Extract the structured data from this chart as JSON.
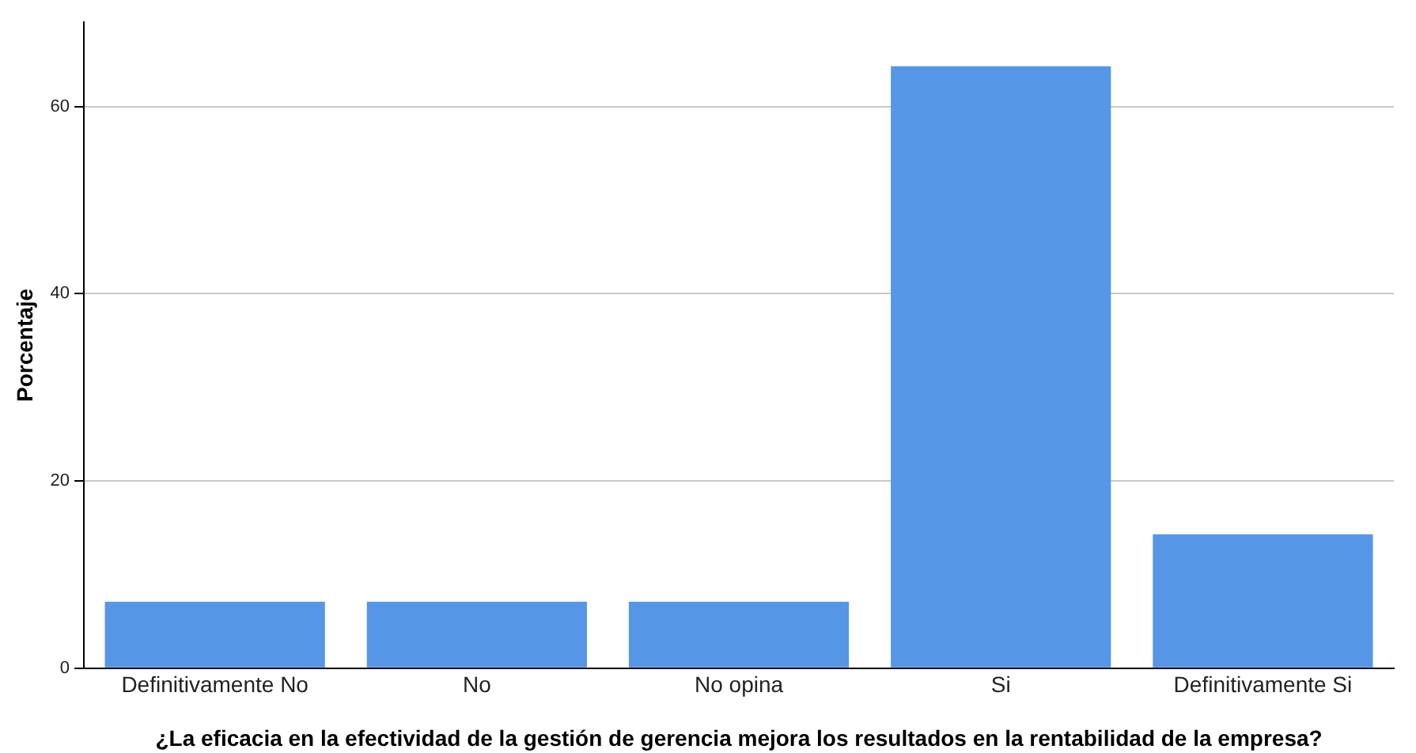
{
  "chart_data": {
    "type": "bar",
    "xlabel": "¿La eficacia en la efectividad de la gestión de gerencia mejora los resultados en la rentabilidad de la empresa?",
    "ylabel": "Porcentaje",
    "categories": [
      "Definitivamente No",
      "No",
      "No opina",
      "Si",
      "Definitivamente Si"
    ],
    "values": [
      7.1,
      7.1,
      7.1,
      64.3,
      14.3
    ],
    "color": "#5596e6",
    "ylim": [
      0,
      69
    ],
    "yticks": [
      0,
      20,
      40,
      60
    ],
    "grid": "y",
    "legend": false
  }
}
